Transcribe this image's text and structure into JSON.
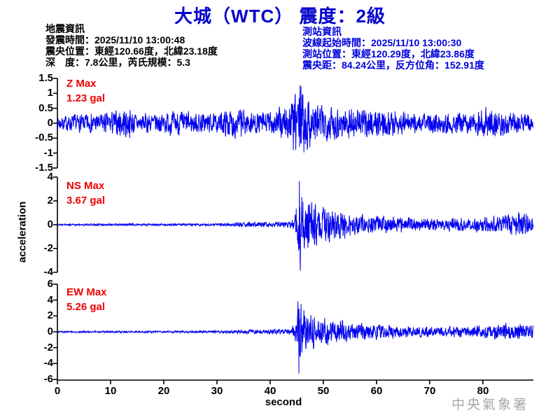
{
  "header": {
    "title": "大城（WTC） 震度：2級"
  },
  "quake_info": {
    "heading": "地震資訊",
    "lines": [
      "發震時間：2025/11/10 13:00:48",
      "震央位置：東經120.66度，北緯23.18度",
      "深　度：7.8公里，芮氏規模：5.3"
    ]
  },
  "station_info": {
    "heading": "測站資訊",
    "lines": [
      "波線起始時間：2025/11/10 13:00:30",
      "測站位置：東經120.29度，北緯23.86度",
      "震央距：84.24公里，反方位角：152.91度"
    ]
  },
  "watermark": "中央氣象署",
  "colors": {
    "title": "#0000cc",
    "info": "#0000dd",
    "trace": "#0000ee",
    "max_label": "#ee0000",
    "watermark": "#a6a6a6",
    "axis": "#000000"
  },
  "chart_data": {
    "type": "line",
    "title": "大城（WTC） 震度：2級",
    "xlabel": "second",
    "ylabel": "acceleration",
    "x_range": [
      0,
      89.5
    ],
    "x_ticks": [
      0,
      10,
      20,
      30,
      40,
      50,
      60,
      70,
      80
    ],
    "grid": false,
    "legend": false,
    "traces": [
      {
        "name": "Z",
        "max_label": "Z Max",
        "max_value_label": "1.23 gal",
        "max_gal": 1.23,
        "peak_time": 45.8,
        "peak_sign": 1,
        "ylim": [
          -1.5,
          1.5
        ],
        "y_ticks": [
          "1.5",
          "1",
          "0.5",
          "0",
          "-0.5",
          "-1",
          "-1.5"
        ],
        "envelope": [
          [
            0,
            0.22
          ],
          [
            4,
            0.28
          ],
          [
            8,
            0.3
          ],
          [
            12,
            0.42
          ],
          [
            13,
            0.5
          ],
          [
            15,
            0.3
          ],
          [
            19,
            0.32
          ],
          [
            23,
            0.38
          ],
          [
            26,
            0.33
          ],
          [
            30,
            0.28
          ],
          [
            33,
            0.5
          ],
          [
            35,
            0.45
          ],
          [
            37,
            0.33
          ],
          [
            40,
            0.38
          ],
          [
            43,
            0.55
          ],
          [
            44.5,
            0.85
          ],
          [
            45.8,
            1.23
          ],
          [
            47,
            0.85
          ],
          [
            48.5,
            0.65
          ],
          [
            51,
            0.55
          ],
          [
            54,
            0.5
          ],
          [
            57,
            0.42
          ],
          [
            60,
            0.45
          ],
          [
            63,
            0.4
          ],
          [
            66,
            0.35
          ],
          [
            70,
            0.3
          ],
          [
            74,
            0.33
          ],
          [
            78,
            0.3
          ],
          [
            81,
            0.5
          ],
          [
            83,
            0.42
          ],
          [
            86,
            0.33
          ],
          [
            89.5,
            0.3
          ]
        ]
      },
      {
        "name": "NS",
        "max_label": "NS Max",
        "max_value_label": "3.67 gal",
        "max_gal": 3.67,
        "peak_time": 45.5,
        "peak_sign": 1,
        "ylim": [
          -4,
          4
        ],
        "y_ticks": [
          "4",
          "2",
          "0",
          "-2",
          "-4"
        ],
        "envelope": [
          [
            0,
            0.07
          ],
          [
            20,
            0.08
          ],
          [
            30,
            0.09
          ],
          [
            33,
            0.15
          ],
          [
            36,
            0.18
          ],
          [
            40,
            0.2
          ],
          [
            44,
            0.25
          ],
          [
            44.8,
            1.2
          ],
          [
            45.5,
            3.67
          ],
          [
            46.5,
            2.6
          ],
          [
            48,
            1.9
          ],
          [
            50,
            1.5
          ],
          [
            52,
            1.2
          ],
          [
            55,
            0.95
          ],
          [
            58,
            0.8
          ],
          [
            62,
            0.65
          ],
          [
            66,
            0.55
          ],
          [
            70,
            0.5
          ],
          [
            74,
            0.5
          ],
          [
            78,
            0.55
          ],
          [
            81,
            0.6
          ],
          [
            84,
            0.75
          ],
          [
            86,
            0.95
          ],
          [
            88,
            1.15
          ],
          [
            89.5,
            0.85
          ]
        ]
      },
      {
        "name": "EW",
        "max_label": "EW Max",
        "max_value_label": "5.26 gal",
        "max_gal": 5.26,
        "peak_time": 45.4,
        "peak_sign": -1,
        "ylim": [
          -6,
          6
        ],
        "y_ticks": [
          "6",
          "4",
          "2",
          "0",
          "-2",
          "-4",
          "-6"
        ],
        "envelope": [
          [
            0,
            0.1
          ],
          [
            20,
            0.12
          ],
          [
            30,
            0.13
          ],
          [
            33,
            0.2
          ],
          [
            36,
            0.25
          ],
          [
            40,
            0.28
          ],
          [
            44,
            0.35
          ],
          [
            44.9,
            1.5
          ],
          [
            45.4,
            5.26
          ],
          [
            46,
            2.6
          ],
          [
            47.5,
            2.0
          ],
          [
            49,
            1.6
          ],
          [
            51,
            1.5
          ],
          [
            53,
            1.3
          ],
          [
            56,
            1.1
          ],
          [
            59,
            0.95
          ],
          [
            62,
            0.8
          ],
          [
            65,
            0.7
          ],
          [
            68,
            0.62
          ],
          [
            72,
            0.58
          ],
          [
            76,
            0.62
          ],
          [
            80,
            0.75
          ],
          [
            83,
            0.95
          ],
          [
            85,
            1.0
          ],
          [
            87,
            0.85
          ],
          [
            89.5,
            0.8
          ]
        ]
      }
    ]
  }
}
